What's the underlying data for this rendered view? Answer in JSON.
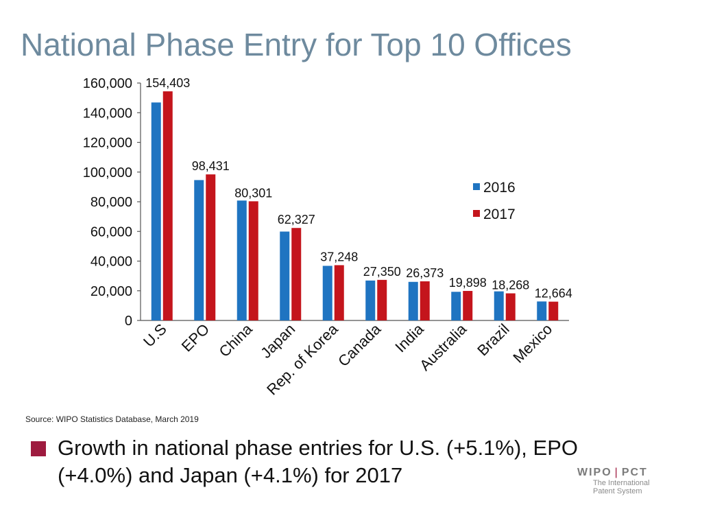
{
  "slide": {
    "title": "National Phase Entry for Top 10 Offices",
    "source": "Source:  WIPO Statistics Database, March 2019",
    "bullet": "Growth in national phase entries for U.S. (+5.1%), EPO (+4.0%) and Japan (+4.1%) for 2017"
  },
  "logo": {
    "wordmark_left": "WIPO",
    "separator": "|",
    "wordmark_right": "PCT",
    "line1": "The International",
    "line2": "Patent System"
  },
  "colors": {
    "title": "#6e8a9e",
    "series_2016": "#1f74c1",
    "series_2017": "#c4151c",
    "accent": "#9e1b3f"
  },
  "chart_data": {
    "type": "bar",
    "title": "",
    "xlabel": "",
    "ylabel": "",
    "ylim": [
      0,
      160000
    ],
    "yticks": [
      0,
      20000,
      40000,
      60000,
      80000,
      100000,
      120000,
      140000,
      160000
    ],
    "ytick_labels": [
      "0",
      "20,000",
      "40,000",
      "60,000",
      "80,000",
      "100,000",
      "120,000",
      "140,000",
      "160,000"
    ],
    "grid": false,
    "legend_position": "right",
    "categories": [
      "U.S",
      "EPO",
      "China",
      "Japan",
      "Rep. of Korea",
      "Canada",
      "India",
      "Australia",
      "Brazil",
      "Mexico"
    ],
    "series": [
      {
        "name": "2016",
        "color": "#1f74c1",
        "values": [
          146900,
          94600,
          80800,
          59900,
          36800,
          26900,
          26000,
          19300,
          19600,
          12800
        ]
      },
      {
        "name": "2017",
        "color": "#c4151c",
        "values": [
          154403,
          98431,
          80301,
          62327,
          37248,
          27350,
          26373,
          19898,
          18268,
          12664
        ]
      }
    ],
    "data_labels": [
      "154,403",
      "98,431",
      "80,301",
      "62,327",
      "37,248",
      "27,350",
      "26,373",
      "19,898",
      "18,268",
      "12,664"
    ]
  }
}
